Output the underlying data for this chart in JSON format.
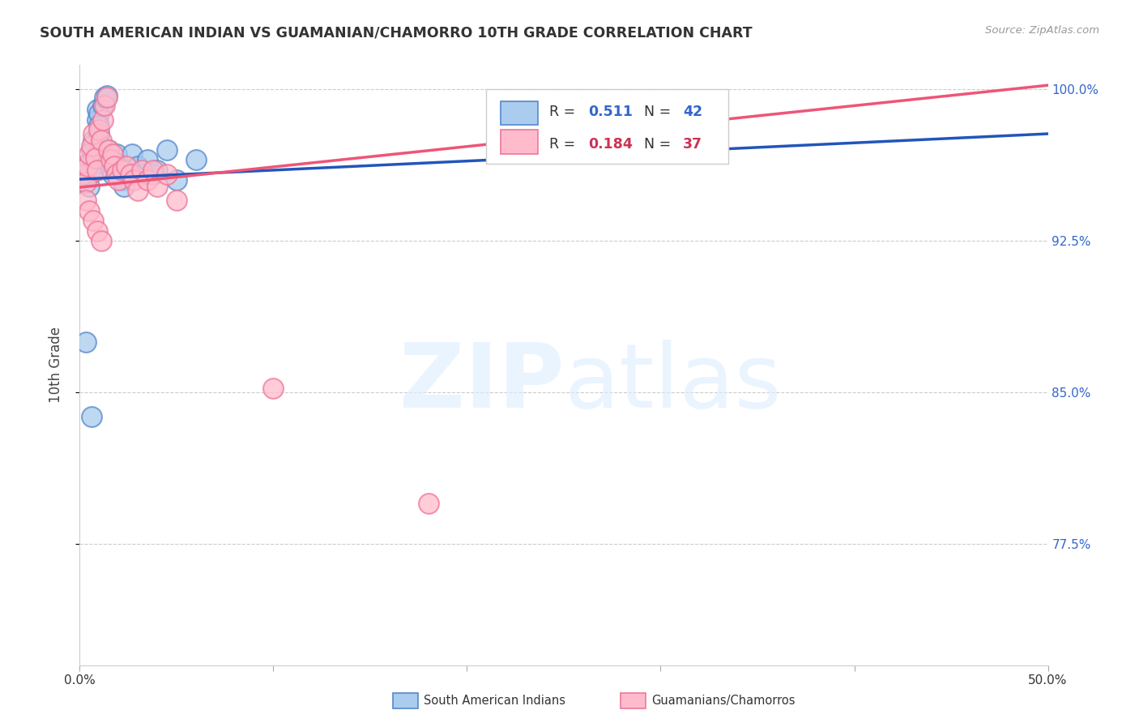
{
  "title": "SOUTH AMERICAN INDIAN VS GUAMANIAN/CHAMORRO 10TH GRADE CORRELATION CHART",
  "source": "Source: ZipAtlas.com",
  "ylabel": "10th Grade",
  "x_min": 0.0,
  "x_max": 0.5,
  "y_min": 0.715,
  "y_max": 1.012,
  "y_ticks": [
    0.775,
    0.85,
    0.925,
    1.0
  ],
  "y_tick_labels": [
    "77.5%",
    "85.0%",
    "92.5%",
    "100.0%"
  ],
  "grid_color": "#cccccc",
  "blue_R": 0.511,
  "blue_N": 42,
  "pink_R": 0.184,
  "pink_N": 37,
  "blue_line_x0": 0.0,
  "blue_line_y0": 0.9555,
  "blue_line_x1": 0.5,
  "blue_line_y1": 0.978,
  "pink_line_x0": 0.0,
  "pink_line_y0": 0.9515,
  "pink_line_x1": 0.5,
  "pink_line_y1": 1.002,
  "blue_scatter_x": [
    0.002,
    0.003,
    0.004,
    0.005,
    0.005,
    0.006,
    0.007,
    0.007,
    0.008,
    0.008,
    0.009,
    0.009,
    0.01,
    0.01,
    0.01,
    0.011,
    0.011,
    0.012,
    0.013,
    0.014,
    0.015,
    0.015,
    0.016,
    0.017,
    0.018,
    0.019,
    0.02,
    0.021,
    0.022,
    0.023,
    0.025,
    0.027,
    0.03,
    0.032,
    0.035,
    0.038,
    0.04,
    0.045,
    0.05,
    0.06,
    0.003,
    0.006
  ],
  "blue_scatter_y": [
    0.96,
    0.956,
    0.963,
    0.958,
    0.952,
    0.97,
    0.965,
    0.975,
    0.968,
    0.96,
    0.99,
    0.985,
    0.988,
    0.982,
    0.978,
    0.972,
    0.966,
    0.992,
    0.996,
    0.997,
    0.97,
    0.965,
    0.96,
    0.958,
    0.962,
    0.968,
    0.963,
    0.958,
    0.955,
    0.952,
    0.96,
    0.968,
    0.962,
    0.958,
    0.965,
    0.958,
    0.96,
    0.97,
    0.955,
    0.965,
    0.875,
    0.838
  ],
  "pink_scatter_x": [
    0.002,
    0.003,
    0.004,
    0.005,
    0.006,
    0.007,
    0.008,
    0.009,
    0.01,
    0.011,
    0.012,
    0.013,
    0.014,
    0.015,
    0.016,
    0.017,
    0.018,
    0.019,
    0.02,
    0.022,
    0.024,
    0.026,
    0.028,
    0.03,
    0.032,
    0.035,
    0.038,
    0.04,
    0.045,
    0.05,
    0.003,
    0.005,
    0.007,
    0.009,
    0.011,
    0.1,
    0.18
  ],
  "pink_scatter_y": [
    0.958,
    0.954,
    0.962,
    0.968,
    0.972,
    0.978,
    0.966,
    0.96,
    0.98,
    0.975,
    0.985,
    0.992,
    0.996,
    0.97,
    0.965,
    0.968,
    0.962,
    0.958,
    0.955,
    0.96,
    0.962,
    0.958,
    0.955,
    0.95,
    0.96,
    0.955,
    0.96,
    0.952,
    0.958,
    0.945,
    0.945,
    0.94,
    0.935,
    0.93,
    0.925,
    0.852,
    0.795
  ],
  "label_color_blue": "#3366cc",
  "label_color_pink": "#cc3355",
  "tick_label_color": "#3366cc"
}
